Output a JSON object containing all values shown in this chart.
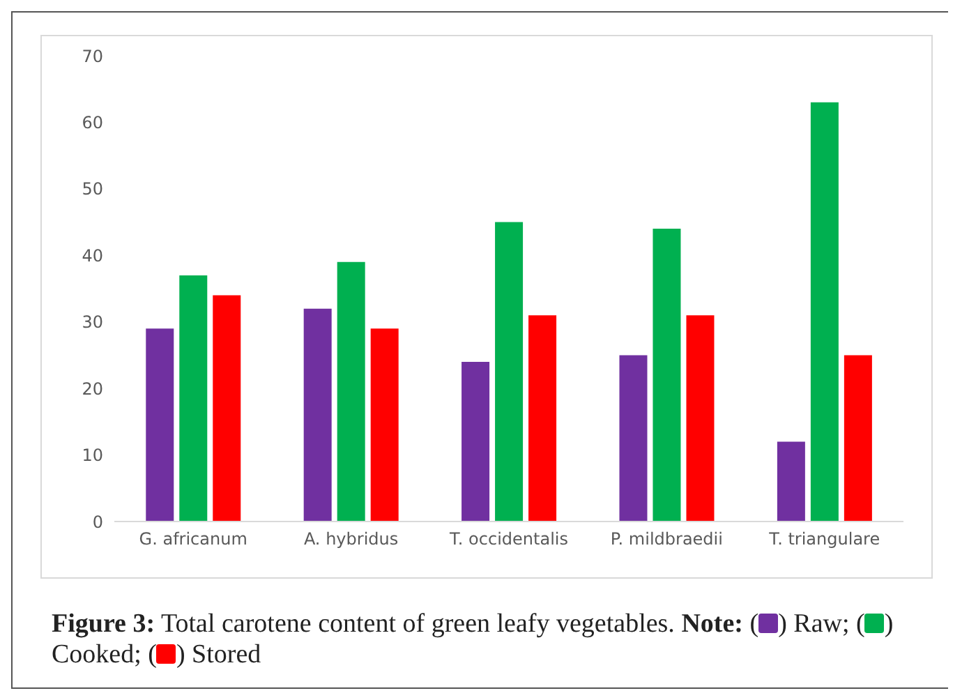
{
  "chart_data": {
    "type": "bar",
    "title": "Figure 3: Total carotene content of green leafy vegetables.",
    "annotations": [
      "Note:",
      "(",
      ") Raw; (",
      ") Cooked; (",
      ") Stored"
    ],
    "categories": [
      "G. africanum",
      "A. hybridus",
      "T. occidentalis",
      "P. mildbraedii",
      "T. triangulare"
    ],
    "series": [
      {
        "color": "#7030a0",
        "values": [
          29,
          32,
          24,
          25,
          12
        ]
      },
      {
        "color": "#00b050",
        "values": [
          37,
          39,
          45,
          44,
          63
        ]
      },
      {
        "color": "#ff0000",
        "values": [
          34,
          29,
          31,
          31,
          25
        ]
      }
    ],
    "ylim": [
      0,
      70
    ],
    "yticks": [
      0,
      10,
      20,
      30,
      40,
      50,
      60,
      70
    ],
    "grid": false
  }
}
